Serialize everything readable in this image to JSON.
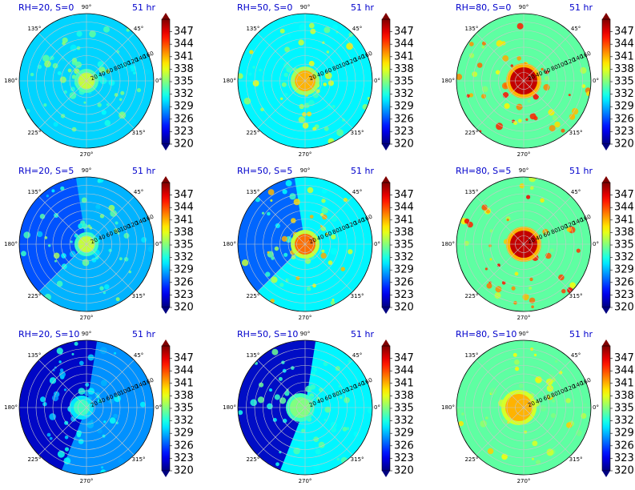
{
  "figure": {
    "type": "polar_heatmap_grid",
    "rows": 3,
    "cols": 3
  },
  "colorbar": {
    "min": 320,
    "max": 350,
    "ticks": [
      "320",
      "323",
      "326",
      "329",
      "332",
      "335",
      "338",
      "341",
      "344",
      "347"
    ],
    "colormap": "jet"
  },
  "chart_data": [
    {
      "type": "heatmap",
      "title": "RH=20, S=0",
      "time_label": "51 hr",
      "rh": 20,
      "shear": 0,
      "angle_ticks": [
        "0°",
        "45°",
        "90°",
        "135°",
        "180°",
        "225°",
        "270°",
        "315°"
      ],
      "radial_ticks": [
        "20",
        "40",
        "60",
        "80",
        "100",
        "120",
        "140",
        "160"
      ],
      "radial_max": 160,
      "value_range": [
        320,
        350
      ],
      "core_value": 337,
      "background_value": 330
    },
    {
      "type": "heatmap",
      "title": "RH=50, S=0",
      "time_label": "51 hr",
      "rh": 50,
      "shear": 0,
      "angle_ticks": [
        "0°",
        "45°",
        "90°",
        "135°",
        "180°",
        "225°",
        "270°",
        "315°"
      ],
      "radial_ticks": [
        "20",
        "40",
        "60",
        "80",
        "100",
        "120",
        "140",
        "160"
      ],
      "radial_max": 160,
      "value_range": [
        320,
        350
      ],
      "core_value": 341,
      "background_value": 331
    },
    {
      "type": "heatmap",
      "title": "RH=80, S=0",
      "time_label": "51 hr",
      "rh": 80,
      "shear": 0,
      "angle_ticks": [
        "0°",
        "45°",
        "90°",
        "135°",
        "180°",
        "225°",
        "270°",
        "315°"
      ],
      "radial_ticks": [
        "20",
        "40",
        "60",
        "80",
        "100",
        "120",
        "140",
        "160"
      ],
      "radial_max": 160,
      "value_range": [
        320,
        350
      ],
      "core_value": 348,
      "background_value": 334
    },
    {
      "type": "heatmap",
      "title": "RH=20, S=5",
      "time_label": "51 hr",
      "rh": 20,
      "shear": 5,
      "angle_ticks": [
        "0°",
        "45°",
        "90°",
        "135°",
        "180°",
        "225°",
        "270°",
        "315°"
      ],
      "radial_ticks": [
        "20",
        "40",
        "60",
        "80",
        "100",
        "120",
        "140",
        "160"
      ],
      "radial_max": 160,
      "value_range": [
        320,
        350
      ],
      "core_value": 337,
      "background_value": 329
    },
    {
      "type": "heatmap",
      "title": "RH=50, S=5",
      "time_label": "51 hr",
      "rh": 50,
      "shear": 5,
      "angle_ticks": [
        "0°",
        "45°",
        "90°",
        "135°",
        "180°",
        "225°",
        "270°",
        "315°"
      ],
      "radial_ticks": [
        "20",
        "40",
        "60",
        "80",
        "100",
        "120",
        "140",
        "160"
      ],
      "radial_max": 160,
      "value_range": [
        320,
        350
      ],
      "core_value": 343,
      "background_value": 331
    },
    {
      "type": "heatmap",
      "title": "RH=80, S=5",
      "time_label": "51 hr",
      "rh": 80,
      "shear": 5,
      "angle_ticks": [
        "0°",
        "45°",
        "90°",
        "135°",
        "180°",
        "225°",
        "270°",
        "315°"
      ],
      "radial_ticks": [
        "20",
        "40",
        "60",
        "80",
        "100",
        "120",
        "140",
        "160"
      ],
      "radial_max": 160,
      "value_range": [
        320,
        350
      ],
      "core_value": 348,
      "background_value": 334
    },
    {
      "type": "heatmap",
      "title": "RH=20, S=10",
      "time_label": "51 hr",
      "rh": 20,
      "shear": 10,
      "angle_ticks": [
        "0°",
        "45°",
        "90°",
        "135°",
        "180°",
        "225°",
        "270°",
        "315°"
      ],
      "radial_ticks": [
        "20",
        "40",
        "60",
        "80",
        "100",
        "120",
        "140",
        "160"
      ],
      "radial_max": 160,
      "value_range": [
        320,
        350
      ],
      "core_value": 333,
      "background_value": 328
    },
    {
      "type": "heatmap",
      "title": "RH=50, S=10",
      "time_label": "51 hr",
      "rh": 50,
      "shear": 10,
      "angle_ticks": [
        "0°",
        "45°",
        "90°",
        "135°",
        "180°",
        "225°",
        "270°",
        "315°"
      ],
      "radial_ticks": [
        "20",
        "40",
        "60",
        "80",
        "100",
        "120",
        "140",
        "160"
      ],
      "radial_max": 160,
      "value_range": [
        320,
        350
      ],
      "core_value": 335,
      "background_value": 331
    },
    {
      "type": "heatmap",
      "title": "RH=80, S=10",
      "time_label": "51 hr",
      "rh": 80,
      "shear": 10,
      "angle_ticks": [
        "0°",
        "45°",
        "90°",
        "135°",
        "180°",
        "225°",
        "270°",
        "315°"
      ],
      "radial_ticks": [
        "20",
        "40",
        "60",
        "80",
        "100",
        "120",
        "140",
        "160"
      ],
      "radial_max": 160,
      "value_range": [
        320,
        350
      ],
      "core_value": 341,
      "background_value": 334
    }
  ]
}
